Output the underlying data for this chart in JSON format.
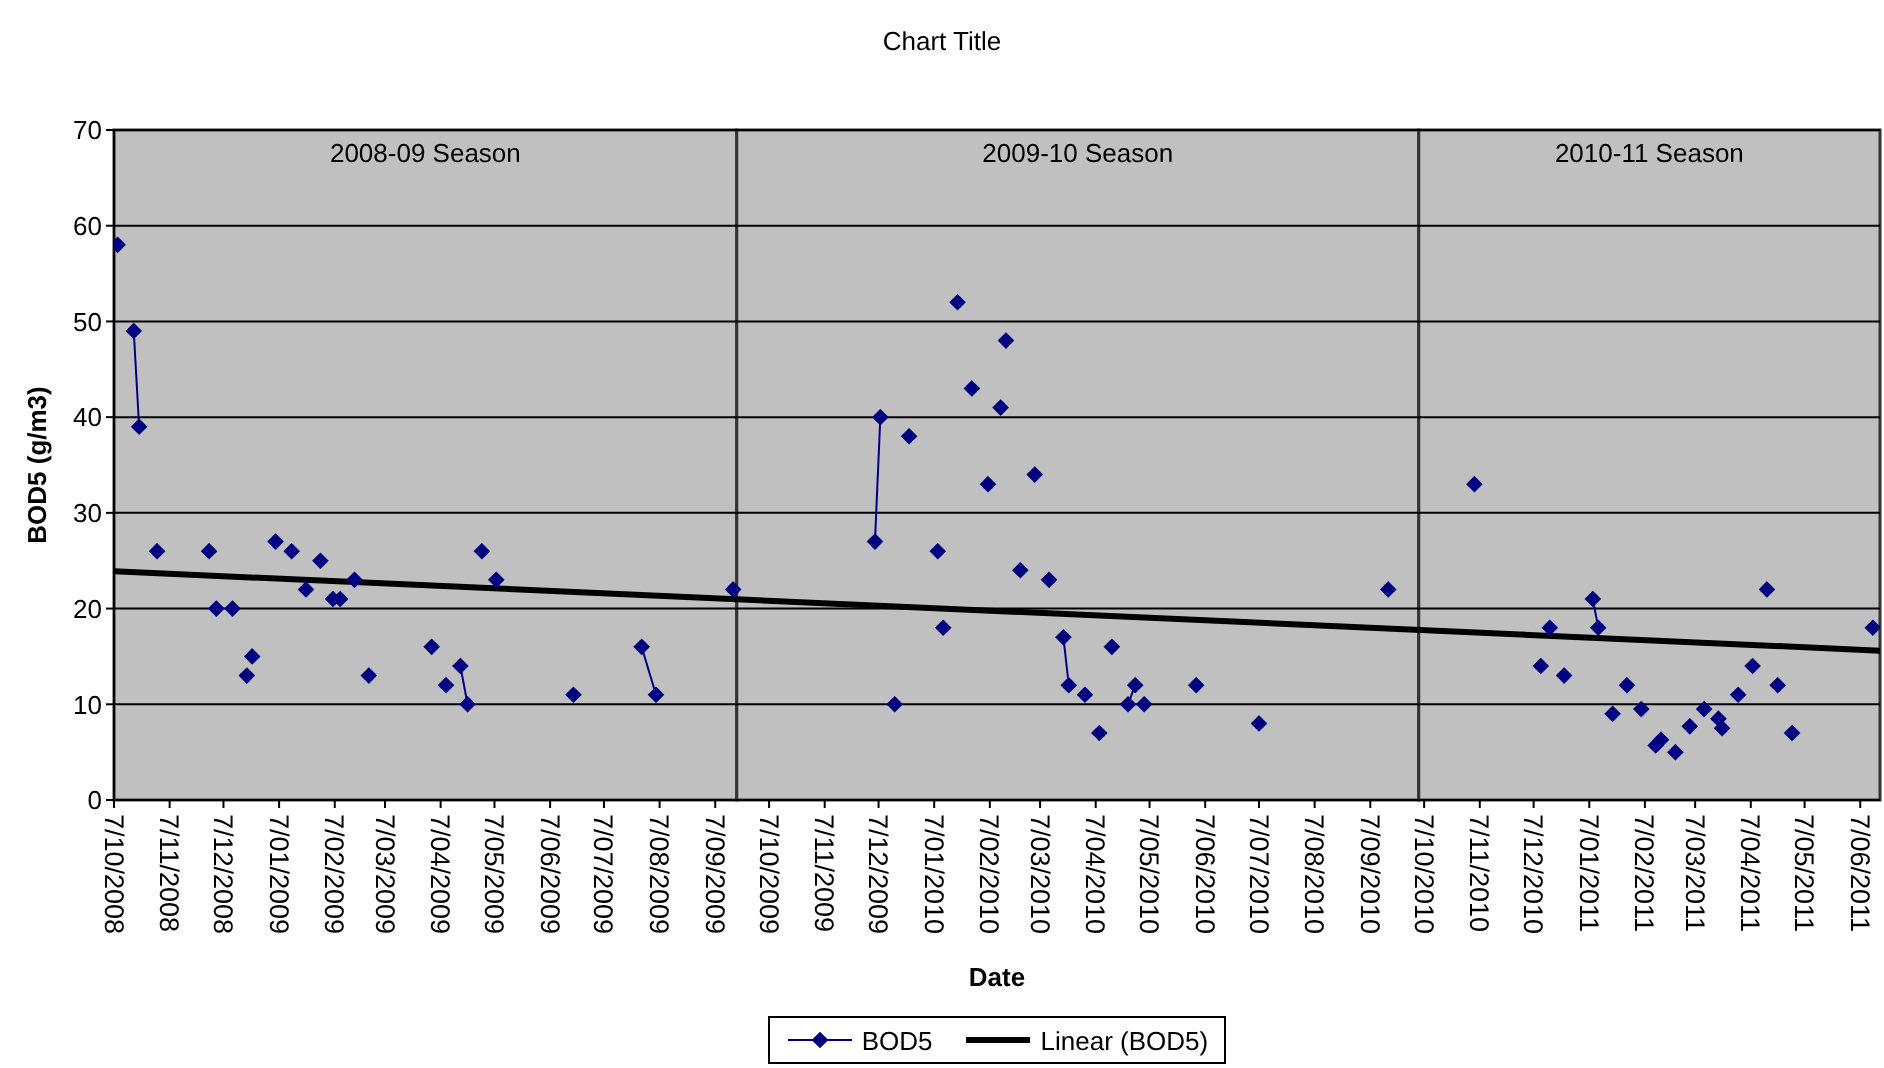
{
  "chart_data": {
    "type": "line",
    "title": "Chart Title",
    "xlabel": "Date",
    "ylabel": "BOD5 (g/m3)",
    "xlim": [
      "2008-10-07",
      "2011-06-18"
    ],
    "xticks": [
      {
        "value": "2008-10-07",
        "label": "7/10/2008"
      },
      {
        "value": "2008-11-07",
        "label": "7/11/2008"
      },
      {
        "value": "2008-12-07",
        "label": "7/12/2008"
      },
      {
        "value": "2009-01-07",
        "label": "7/01/2009"
      },
      {
        "value": "2009-02-07",
        "label": "7/02/2009"
      },
      {
        "value": "2009-03-07",
        "label": "7/03/2009"
      },
      {
        "value": "2009-04-07",
        "label": "7/04/2009"
      },
      {
        "value": "2009-05-07",
        "label": "7/05/2009"
      },
      {
        "value": "2009-06-07",
        "label": "7/06/2009"
      },
      {
        "value": "2009-07-07",
        "label": "7/07/2009"
      },
      {
        "value": "2009-08-07",
        "label": "7/08/2009"
      },
      {
        "value": "2009-09-07",
        "label": "7/09/2009"
      },
      {
        "value": "2009-10-07",
        "label": "7/10/2009"
      },
      {
        "value": "2009-11-07",
        "label": "7/11/2009"
      },
      {
        "value": "2009-12-07",
        "label": "7/12/2009"
      },
      {
        "value": "2010-01-07",
        "label": "7/01/2010"
      },
      {
        "value": "2010-02-07",
        "label": "7/02/2010"
      },
      {
        "value": "2010-03-07",
        "label": "7/03/2010"
      },
      {
        "value": "2010-04-07",
        "label": "7/04/2010"
      },
      {
        "value": "2010-05-07",
        "label": "7/05/2010"
      },
      {
        "value": "2010-06-07",
        "label": "7/06/2010"
      },
      {
        "value": "2010-07-07",
        "label": "7/07/2010"
      },
      {
        "value": "2010-08-07",
        "label": "7/08/2010"
      },
      {
        "value": "2010-09-07",
        "label": "7/09/2010"
      },
      {
        "value": "2010-10-07",
        "label": "7/10/2010"
      },
      {
        "value": "2010-11-07",
        "label": "7/11/2010"
      },
      {
        "value": "2010-12-07",
        "label": "7/12/2010"
      },
      {
        "value": "2011-01-07",
        "label": "7/01/2011"
      },
      {
        "value": "2011-02-07",
        "label": "7/02/2011"
      },
      {
        "value": "2011-03-07",
        "label": "7/03/2011"
      },
      {
        "value": "2011-04-07",
        "label": "7/04/2011"
      },
      {
        "value": "2011-05-07",
        "label": "7/05/2011"
      },
      {
        "value": "2011-06-07",
        "label": "7/06/2011"
      }
    ],
    "ylim": [
      0,
      70
    ],
    "yticks": [
      0,
      10,
      20,
      30,
      40,
      50,
      60,
      70
    ],
    "grid": "y",
    "legend": "bottom",
    "series": [
      {
        "name": "BOD5",
        "color": "#000080",
        "marker": "diamond",
        "x": [
          "2008-10-09",
          null,
          "2008-10-18",
          "2008-10-21",
          null,
          "2008-10-31",
          null,
          "2008-11-29",
          null,
          "2008-12-03",
          null,
          "2008-12-12",
          null,
          "2008-12-20",
          null,
          "2008-12-23",
          null,
          "2009-01-05",
          null,
          "2009-01-14",
          null,
          "2009-01-22",
          null,
          "2009-01-30",
          null,
          "2009-02-06",
          null,
          "2009-02-10",
          null,
          "2009-02-18",
          null,
          "2009-02-26",
          null,
          "2009-04-02",
          null,
          "2009-04-10",
          null,
          "2009-04-18",
          "2009-04-22",
          null,
          "2009-04-30",
          null,
          "2009-05-08",
          null,
          "2009-06-20",
          null,
          "2009-07-28",
          "2009-08-05",
          null,
          "2009-09-17",
          null,
          "2009-12-05",
          "2009-12-08",
          null,
          "2009-12-16",
          null,
          "2009-12-24",
          null,
          "2010-01-09",
          null,
          "2010-01-12",
          null,
          "2010-01-20",
          null,
          "2010-01-28",
          null,
          "2010-02-06",
          null,
          "2010-02-13",
          null,
          "2010-02-16",
          null,
          "2010-02-24",
          null,
          "2010-03-04",
          null,
          "2010-03-12",
          null,
          "2010-03-20",
          "2010-03-23",
          null,
          "2010-04-01",
          null,
          "2010-04-09",
          null,
          "2010-04-16",
          null,
          "2010-04-25",
          "2010-04-29",
          null,
          "2010-05-04",
          null,
          "2010-06-02",
          null,
          "2010-07-07",
          null,
          "2010-09-17",
          null,
          "2010-11-04",
          null,
          "2010-12-11",
          null,
          "2010-12-16",
          null,
          "2010-12-24",
          null,
          "2011-01-09",
          "2011-01-12",
          null,
          "2011-01-20",
          null,
          "2011-01-28",
          null,
          "2011-02-05",
          null,
          "2011-02-13",
          null,
          "2011-02-16",
          null,
          "2011-02-24",
          null,
          "2011-03-04",
          null,
          "2011-03-12",
          null,
          "2011-03-20",
          null,
          "2011-03-22",
          null,
          "2011-03-31",
          null,
          "2011-04-08",
          null,
          "2011-04-16",
          null,
          "2011-04-22",
          null,
          "2011-04-30",
          null,
          "2011-06-14"
        ],
        "values": [
          58,
          null,
          49,
          39,
          null,
          26,
          null,
          26,
          null,
          20,
          null,
          20,
          null,
          13,
          null,
          15,
          null,
          27,
          null,
          26,
          null,
          22,
          null,
          25,
          null,
          21,
          null,
          21,
          null,
          23,
          null,
          13,
          null,
          16,
          null,
          12,
          null,
          14,
          10,
          null,
          26,
          null,
          23,
          null,
          11,
          null,
          16,
          11,
          null,
          22,
          null,
          27,
          40,
          null,
          10,
          null,
          38,
          null,
          26,
          null,
          18,
          null,
          52,
          null,
          43,
          null,
          33,
          null,
          41,
          null,
          48,
          null,
          24,
          null,
          34,
          null,
          23,
          null,
          17,
          12,
          null,
          11,
          null,
          7,
          null,
          16,
          null,
          10,
          12,
          null,
          10,
          null,
          12,
          null,
          8,
          null,
          22,
          null,
          33,
          null,
          14,
          null,
          18,
          null,
          13,
          null,
          21,
          18,
          null,
          9,
          null,
          12,
          null,
          9.5,
          null,
          5.7,
          null,
          6.3,
          null,
          5,
          null,
          7.7,
          null,
          9.5,
          null,
          8.5,
          null,
          7.5,
          null,
          11,
          null,
          14,
          null,
          22,
          null,
          12,
          null,
          7,
          null,
          18
        ]
      },
      {
        "name": "Linear (BOD5)",
        "color": "#000000",
        "marker": "none",
        "x": [
          "2008-10-07",
          "2011-06-18"
        ],
        "values": [
          23.9,
          15.6
        ]
      }
    ],
    "bands": [
      {
        "axis": "x",
        "from": "2008-10-07",
        "to": "2009-09-19",
        "label": "2008-09 Season",
        "color": "#c0c0c0"
      },
      {
        "axis": "x",
        "from": "2009-09-19",
        "to": "2010-10-04",
        "label": "2009-10 Season",
        "color": "#c0c0c0"
      },
      {
        "axis": "x",
        "from": "2010-10-04",
        "to": "2011-06-18",
        "label": "2010-11 Season",
        "color": "#c0c0c0"
      }
    ]
  }
}
